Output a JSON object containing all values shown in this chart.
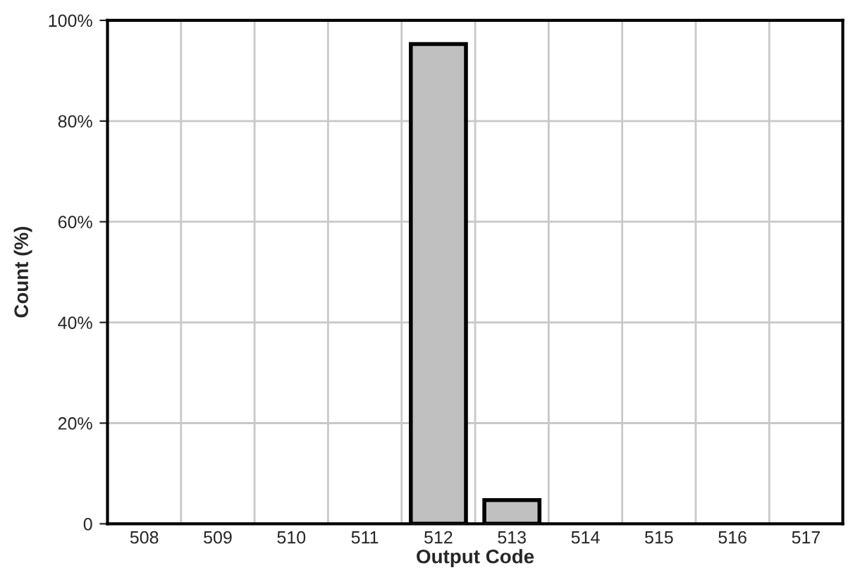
{
  "chart_data": {
    "type": "bar",
    "xlabel": "Output Code",
    "ylabel": "Count (%)",
    "categories": [
      "508",
      "509",
      "510",
      "511",
      "512",
      "513",
      "514",
      "515",
      "516",
      "517"
    ],
    "values": [
      0,
      0,
      0,
      0,
      95.3,
      4.7,
      0,
      0,
      0,
      0
    ],
    "color": "#c0c0c0",
    "ylim": [
      0,
      100
    ],
    "yticks": [
      0,
      {
        "value": 20,
        "label": "20%"
      },
      {
        "value": 40,
        "label": "40%"
      },
      {
        "value": 60,
        "label": "60%"
      },
      {
        "value": 80,
        "label": "80%"
      },
      {
        "value": 100,
        "label": "100%"
      }
    ],
    "grid": true
  }
}
